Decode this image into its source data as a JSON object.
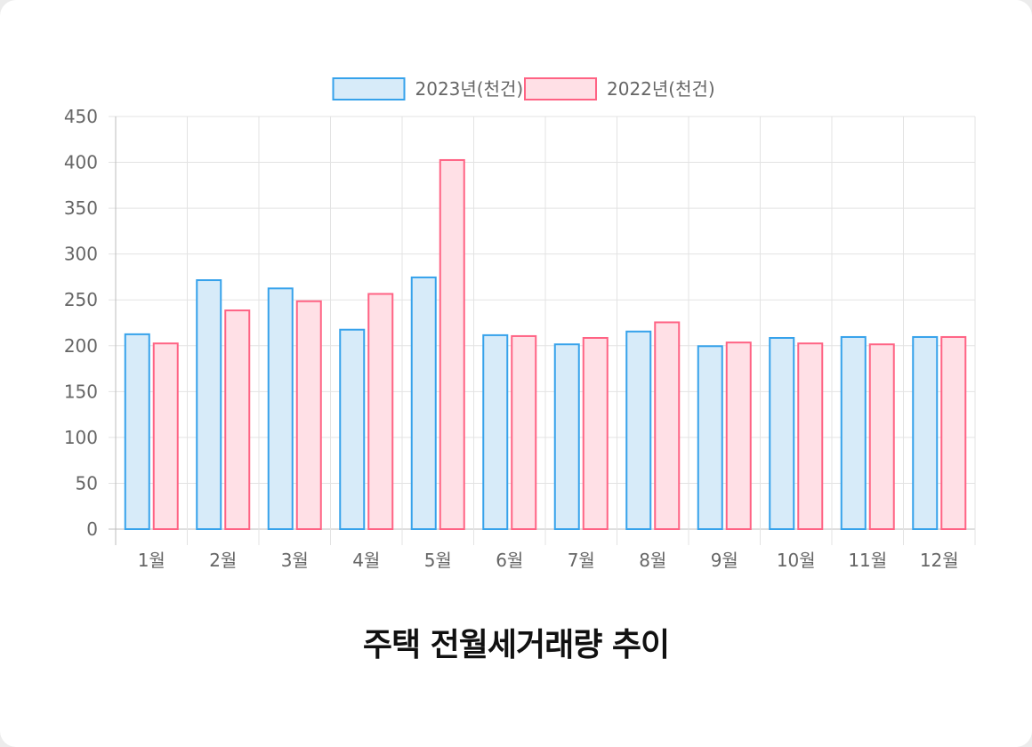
{
  "chart_data": {
    "type": "bar",
    "title": "주택 전월세거래량 추이",
    "categories": [
      "1월",
      "2월",
      "3월",
      "4월",
      "5월",
      "6월",
      "7월",
      "8월",
      "9월",
      "10월",
      "11월",
      "12월"
    ],
    "series": [
      {
        "name": "2023년(천건)",
        "values": [
          213,
          272,
          263,
          218,
          275,
          212,
          202,
          216,
          200,
          209,
          210,
          210
        ],
        "stroke": "#36a2eb",
        "fill": "#d7ebf9"
      },
      {
        "name": "2022년(천건)",
        "values": [
          203,
          239,
          249,
          257,
          403,
          211,
          209,
          226,
          204,
          203,
          202,
          210
        ],
        "stroke": "#ff6384",
        "fill": "#ffe0e6"
      }
    ],
    "ylim": [
      0,
      450
    ],
    "yticks": [
      0,
      50,
      100,
      150,
      200,
      250,
      300,
      350,
      400,
      450
    ],
    "grid": true,
    "legend_position": "top"
  }
}
